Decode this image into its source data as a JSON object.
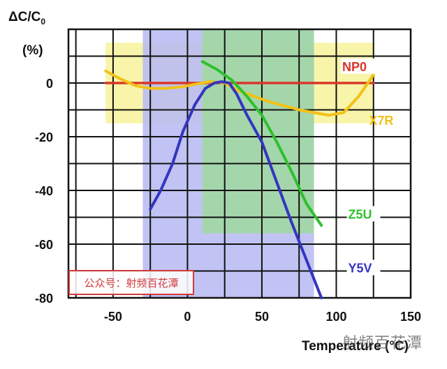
{
  "chart_data": {
    "type": "line",
    "ylabel_main": "ΔC/C",
    "ylabel_sub": "0",
    "yunit": "(%)",
    "xlabel": "Temperature (°C)",
    "xlim": [
      -80,
      150
    ],
    "ylim": [
      -80,
      20
    ],
    "xticks": [
      -50,
      0,
      50,
      100,
      150
    ],
    "yticks": [
      0,
      -20,
      -40,
      -60,
      -80
    ],
    "grid": true,
    "bands": [
      {
        "name": "X7R",
        "x": [
          -55,
          125
        ],
        "y": [
          -15,
          15
        ],
        "color": "#f7f3a0"
      },
      {
        "name": "Y5V",
        "x": [
          -30,
          85
        ],
        "y": [
          -82,
          22
        ],
        "color": "#b9bdf2"
      },
      {
        "name": "Z5U",
        "x": [
          10,
          85
        ],
        "y": [
          -56,
          22
        ],
        "color": "#9fd99f"
      }
    ],
    "series": [
      {
        "name": "NP0",
        "color": "#d9372a",
        "x": [
          -55,
          125
        ],
        "y": [
          0,
          0
        ]
      },
      {
        "name": "X7R",
        "color": "#f2c216",
        "x": [
          -55,
          -45,
          -35,
          -25,
          -15,
          -5,
          5,
          15,
          25,
          35,
          45,
          55,
          65,
          75,
          85,
          95,
          105,
          115,
          125
        ],
        "y": [
          4.5,
          1.5,
          -1,
          -2,
          -2,
          -1.5,
          -0.5,
          0.5,
          0,
          -3,
          -5,
          -7,
          -8.5,
          -10,
          -11,
          -12,
          -11,
          -5,
          3
        ]
      },
      {
        "name": "Z5U",
        "color": "#2ec02e",
        "x": [
          10,
          20,
          30,
          40,
          50,
          60,
          70,
          80,
          90
        ],
        "y": [
          8,
          5,
          1,
          -5,
          -12,
          -22,
          -33,
          -45,
          -53
        ]
      },
      {
        "name": "Y5V",
        "color": "#3335c0",
        "x": [
          -25,
          -18,
          -10,
          -3,
          5,
          12,
          18,
          23,
          28,
          33,
          40,
          50,
          60,
          70,
          80,
          90
        ],
        "y": [
          -47,
          -40,
          -30,
          -18,
          -8,
          -2,
          0,
          0.5,
          0,
          -4,
          -12,
          -22,
          -37,
          -52,
          -66,
          -80
        ]
      }
    ],
    "curve_labels": [
      {
        "text": "NP0",
        "color": "#d9372a",
        "at": [
          104,
          5
        ]
      },
      {
        "text": "X7R",
        "color": "#f2c216",
        "at": [
          122,
          -15
        ]
      },
      {
        "text": "Z5U",
        "color": "#2ec02e",
        "at": [
          108,
          -50
        ]
      },
      {
        "text": "Y5V",
        "color": "#3335c0",
        "at": [
          108,
          -70
        ]
      }
    ]
  },
  "watermarks": {
    "box_text": "公众号：射频百花潭",
    "corner_text": "射频百花潭"
  }
}
